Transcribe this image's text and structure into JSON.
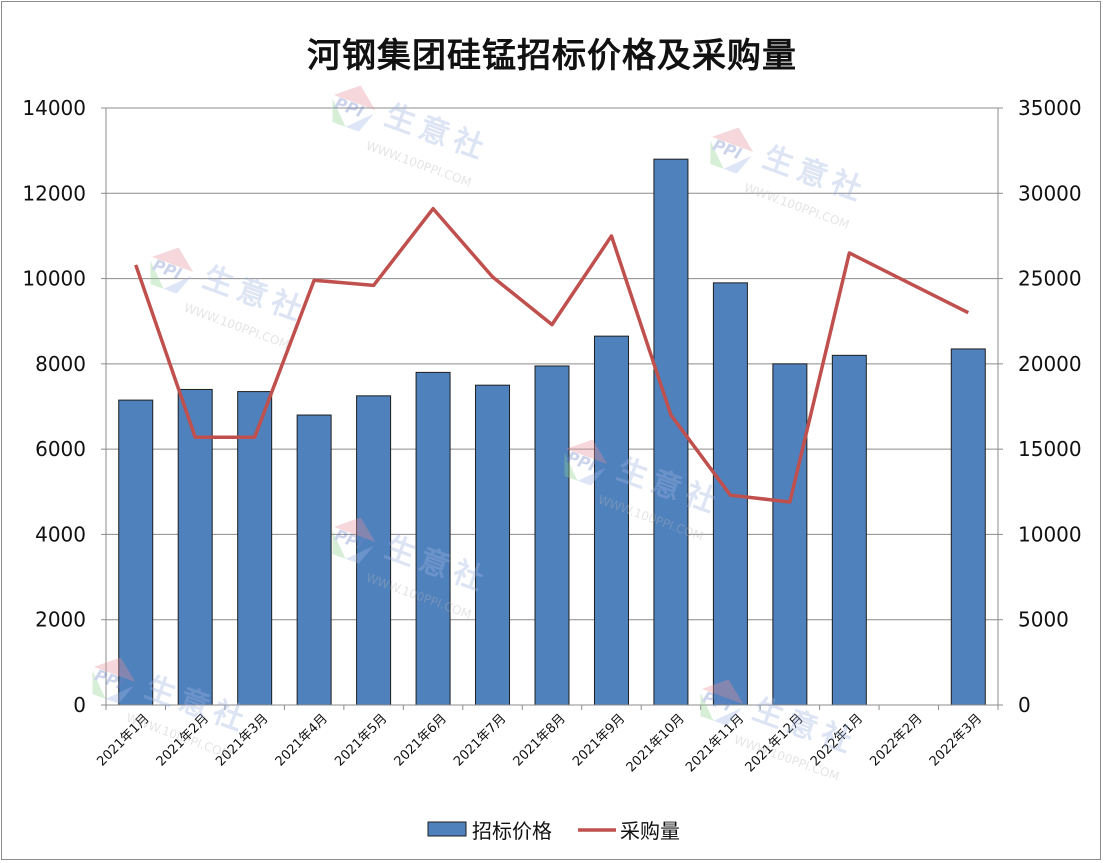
{
  "chart_data": {
    "type": "bar",
    "title": "河钢集团硅锰招标价格及采购量",
    "categories": [
      "2021年1月",
      "2021年2月",
      "2021年3月",
      "2021年4月",
      "2021年5月",
      "2021年6月",
      "2021年7月",
      "2021年8月",
      "2021年9月",
      "2021年10月",
      "2021年11月",
      "2021年12月",
      "2022年1月",
      "2022年2月",
      "2022年3月"
    ],
    "series": [
      {
        "name": "招标价格",
        "type": "bar",
        "axis": "left",
        "color": "#4f81bd",
        "values": [
          7150,
          7400,
          7350,
          6800,
          7250,
          7800,
          7500,
          7950,
          8650,
          12800,
          9900,
          8000,
          8200,
          null,
          8350
        ]
      },
      {
        "name": "采购量",
        "type": "line",
        "axis": "right",
        "color": "#c0504d",
        "values": [
          25800,
          15700,
          15700,
          24900,
          24600,
          29100,
          25100,
          22300,
          27500,
          17000,
          12300,
          11900,
          26500,
          null,
          23000
        ]
      }
    ],
    "left_axis": {
      "ylim": [
        0,
        14000
      ],
      "ticks": [
        0,
        2000,
        4000,
        6000,
        8000,
        10000,
        12000,
        14000
      ]
    },
    "right_axis": {
      "ylim": [
        0,
        35000
      ],
      "ticks": [
        0,
        5000,
        10000,
        15000,
        20000,
        25000,
        30000,
        35000
      ]
    },
    "grid": true,
    "legend": "bottom"
  },
  "watermark": {
    "brand": "生意社",
    "url": "WWW.100PPI.COM",
    "logo": "PPI"
  }
}
